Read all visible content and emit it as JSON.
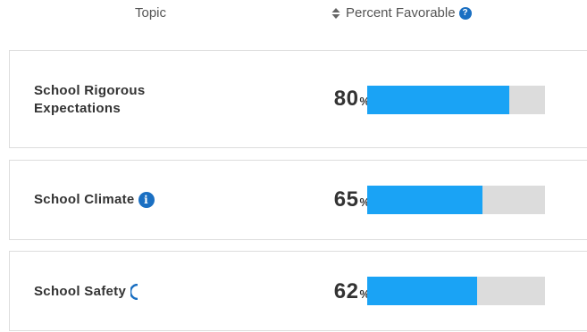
{
  "header": {
    "topic_label": "Topic",
    "percent_label": "Percent Favorable",
    "help_glyph": "?"
  },
  "rows": [
    {
      "topic": "School Rigorous Expectations",
      "percent": 80,
      "percent_text": "80",
      "percent_sign": "%",
      "has_info_icon": false
    },
    {
      "topic": "School Climate",
      "percent": 65,
      "percent_text": "65",
      "percent_sign": "%",
      "has_info_icon": true,
      "info_glyph": "i"
    },
    {
      "topic": "School Safety",
      "percent": 62,
      "percent_text": "62",
      "percent_sign": "%",
      "has_info_icon": true,
      "info_icon_partial": true
    }
  ],
  "colors": {
    "bar_fill": "#1aa3f5",
    "bar_track": "#dcdcdc",
    "icon_blue": "#1a6fc2"
  },
  "icons": {
    "sort": "sort-icon",
    "help": "help-icon",
    "info": "info-icon"
  }
}
